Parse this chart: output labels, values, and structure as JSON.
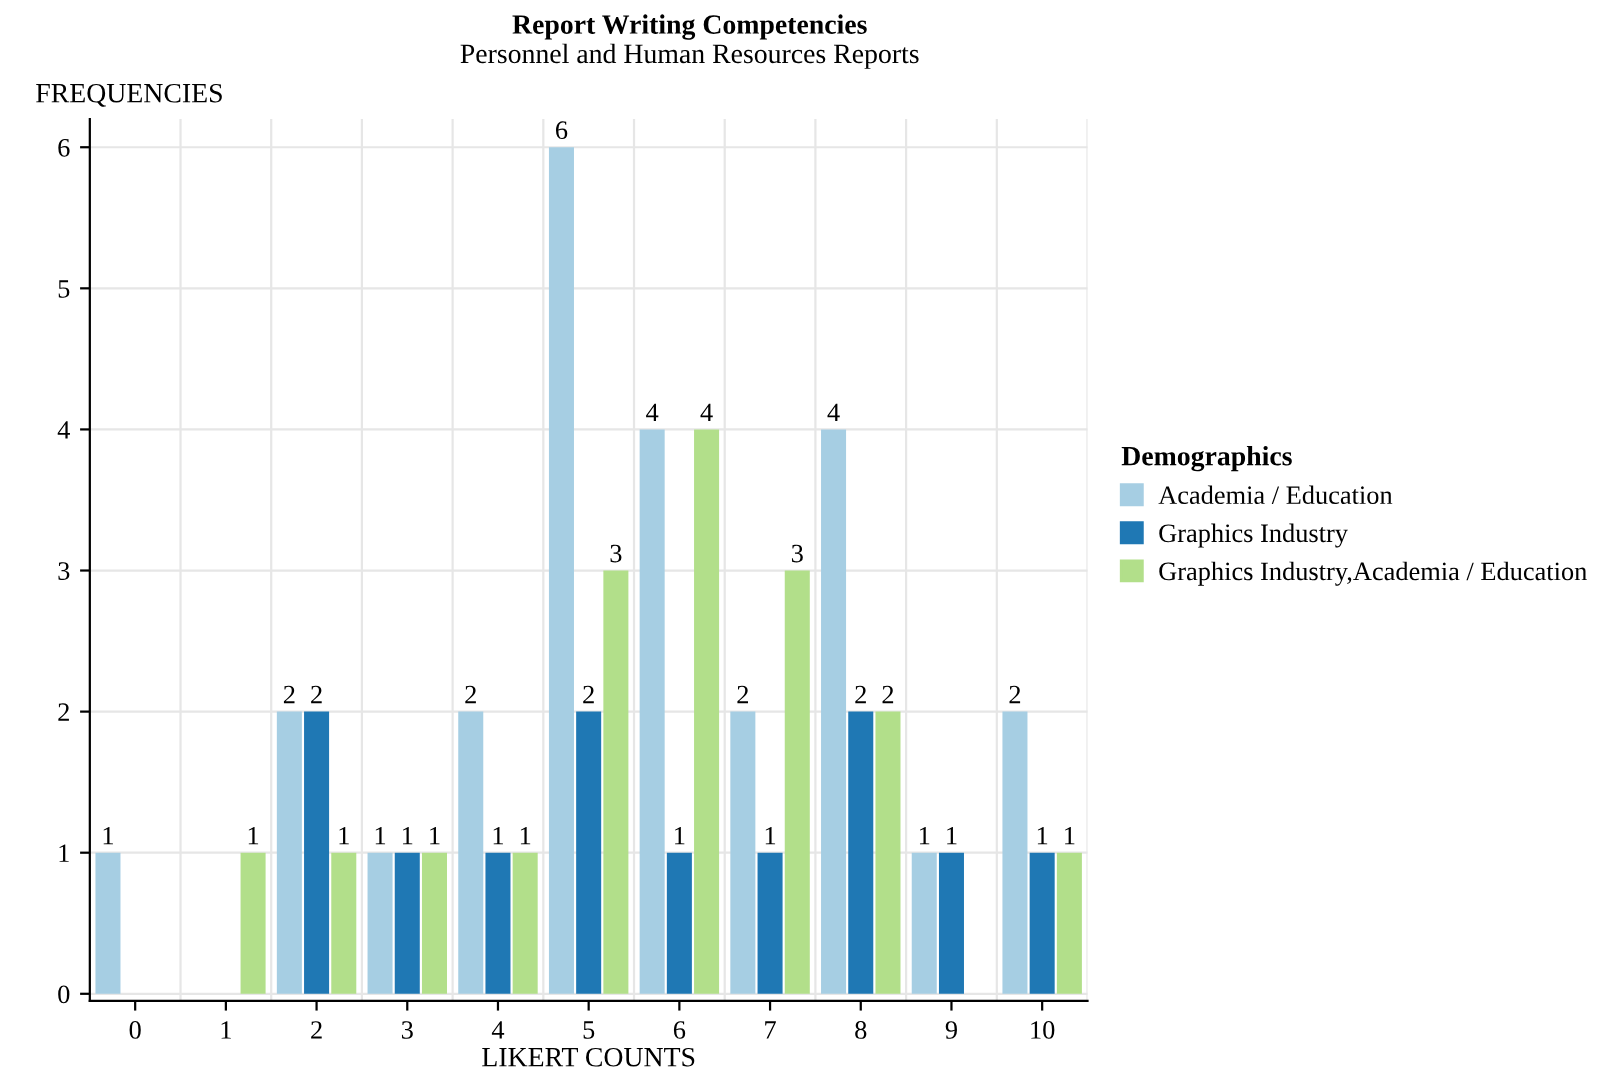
{
  "chart_data": {
    "type": "bar",
    "title": "Report Writing Competencies",
    "subtitle": "Personnel and Human Resources Reports",
    "xlabel": "LIKERT COUNTS",
    "ylabel": "FREQUENCIES",
    "legend_title": "Demographics",
    "categories": [
      "0",
      "1",
      "2",
      "3",
      "4",
      "5",
      "6",
      "7",
      "8",
      "9",
      "10"
    ],
    "series": [
      {
        "name": "Academia / Education",
        "color": "#a6cee3",
        "values": [
          1,
          null,
          2,
          1,
          2,
          6,
          4,
          2,
          4,
          1,
          2
        ]
      },
      {
        "name": "Graphics Industry",
        "color": "#1f78b4",
        "values": [
          null,
          null,
          2,
          1,
          1,
          2,
          1,
          1,
          2,
          1,
          1
        ]
      },
      {
        "name": "Graphics Industry,Academia / Education",
        "color": "#b2df8a",
        "values": [
          null,
          1,
          1,
          1,
          1,
          3,
          4,
          3,
          2,
          null,
          1
        ]
      }
    ],
    "ylim": [
      -0.05,
      6.2
    ],
    "yticks": [
      0,
      1,
      2,
      3,
      4,
      5,
      6
    ],
    "grid": true,
    "legend": "right",
    "data_labels": true
  }
}
